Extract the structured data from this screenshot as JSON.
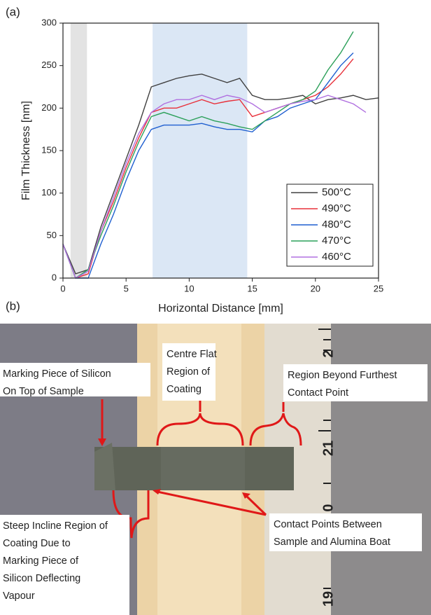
{
  "panel_labels": [
    "(a)",
    "(b)"
  ],
  "chart_data": {
    "type": "line",
    "xlabel": "Horizontal Distance [mm]",
    "ylabel": "Film Thickness [nm]",
    "x": [
      0,
      1,
      2,
      3,
      4,
      5,
      6,
      7,
      8,
      9,
      10,
      11,
      12,
      13,
      14,
      15,
      16,
      17,
      18,
      19,
      20,
      21,
      22,
      23,
      24,
      25
    ],
    "series": [
      {
        "name": "500°C",
        "color": "#404040",
        "values": [
          40,
          5,
          10,
          60,
          100,
          140,
          180,
          225,
          230,
          235,
          238,
          240,
          235,
          230,
          235,
          215,
          210,
          210,
          212,
          215,
          205,
          210,
          212,
          215,
          210,
          212
        ]
      },
      {
        "name": "490°C",
        "color": "#e8303a",
        "values": [
          40,
          0,
          5,
          55,
          90,
          130,
          165,
          195,
          200,
          200,
          205,
          210,
          205,
          208,
          210,
          190,
          195,
          200,
          205,
          210,
          215,
          225,
          240,
          258,
          null,
          null
        ]
      },
      {
        "name": "480°C",
        "color": "#1f5fd0",
        "values": [
          40,
          0,
          0,
          40,
          75,
          115,
          150,
          175,
          180,
          180,
          180,
          182,
          178,
          175,
          175,
          172,
          185,
          190,
          200,
          205,
          210,
          230,
          250,
          265,
          null,
          null
        ]
      },
      {
        "name": "470°C",
        "color": "#2ca05a",
        "values": [
          40,
          0,
          10,
          50,
          85,
          125,
          160,
          190,
          195,
          190,
          185,
          190,
          185,
          182,
          178,
          175,
          185,
          195,
          205,
          210,
          220,
          245,
          265,
          290,
          null,
          null
        ]
      },
      {
        "name": "460°C",
        "color": "#b070e0",
        "values": [
          40,
          0,
          8,
          55,
          95,
          135,
          170,
          195,
          205,
          210,
          210,
          215,
          210,
          215,
          212,
          205,
          195,
          200,
          205,
          208,
          210,
          215,
          210,
          205,
          195,
          null
        ]
      }
    ],
    "highlight_spans": [
      {
        "x": [
          0.6,
          1.9
        ],
        "color": "#e3e3e3"
      },
      {
        "x": [
          7.1,
          14.6
        ],
        "color": "#dbe7f5"
      }
    ],
    "xlim": [
      0,
      25
    ],
    "xticks": [
      0,
      5,
      10,
      15,
      20,
      25
    ],
    "ylim": [
      0,
      300
    ],
    "yticks": [
      0,
      50,
      100,
      150,
      200,
      250,
      300
    ],
    "legend": "lower right"
  },
  "photo": {
    "annotations": [
      {
        "lines": [
          "Marking Piece of Silicon",
          "On Top of Sample"
        ]
      },
      {
        "lines": [
          "Centre Flat",
          "Region of",
          "Coating"
        ]
      },
      {
        "lines": [
          "Region Beyond Furthest",
          "Contact Point"
        ]
      },
      {
        "lines": [
          "Steep Incline Region of",
          "Coating Due to",
          "Marking Piece of",
          "Silicon Deflecting",
          "Vapour"
        ]
      },
      {
        "lines": [
          "Contact Points Between",
          "Sample and Alumina Boat"
        ]
      }
    ],
    "ruler_labels": [
      "2",
      "21",
      "0",
      "19"
    ]
  }
}
